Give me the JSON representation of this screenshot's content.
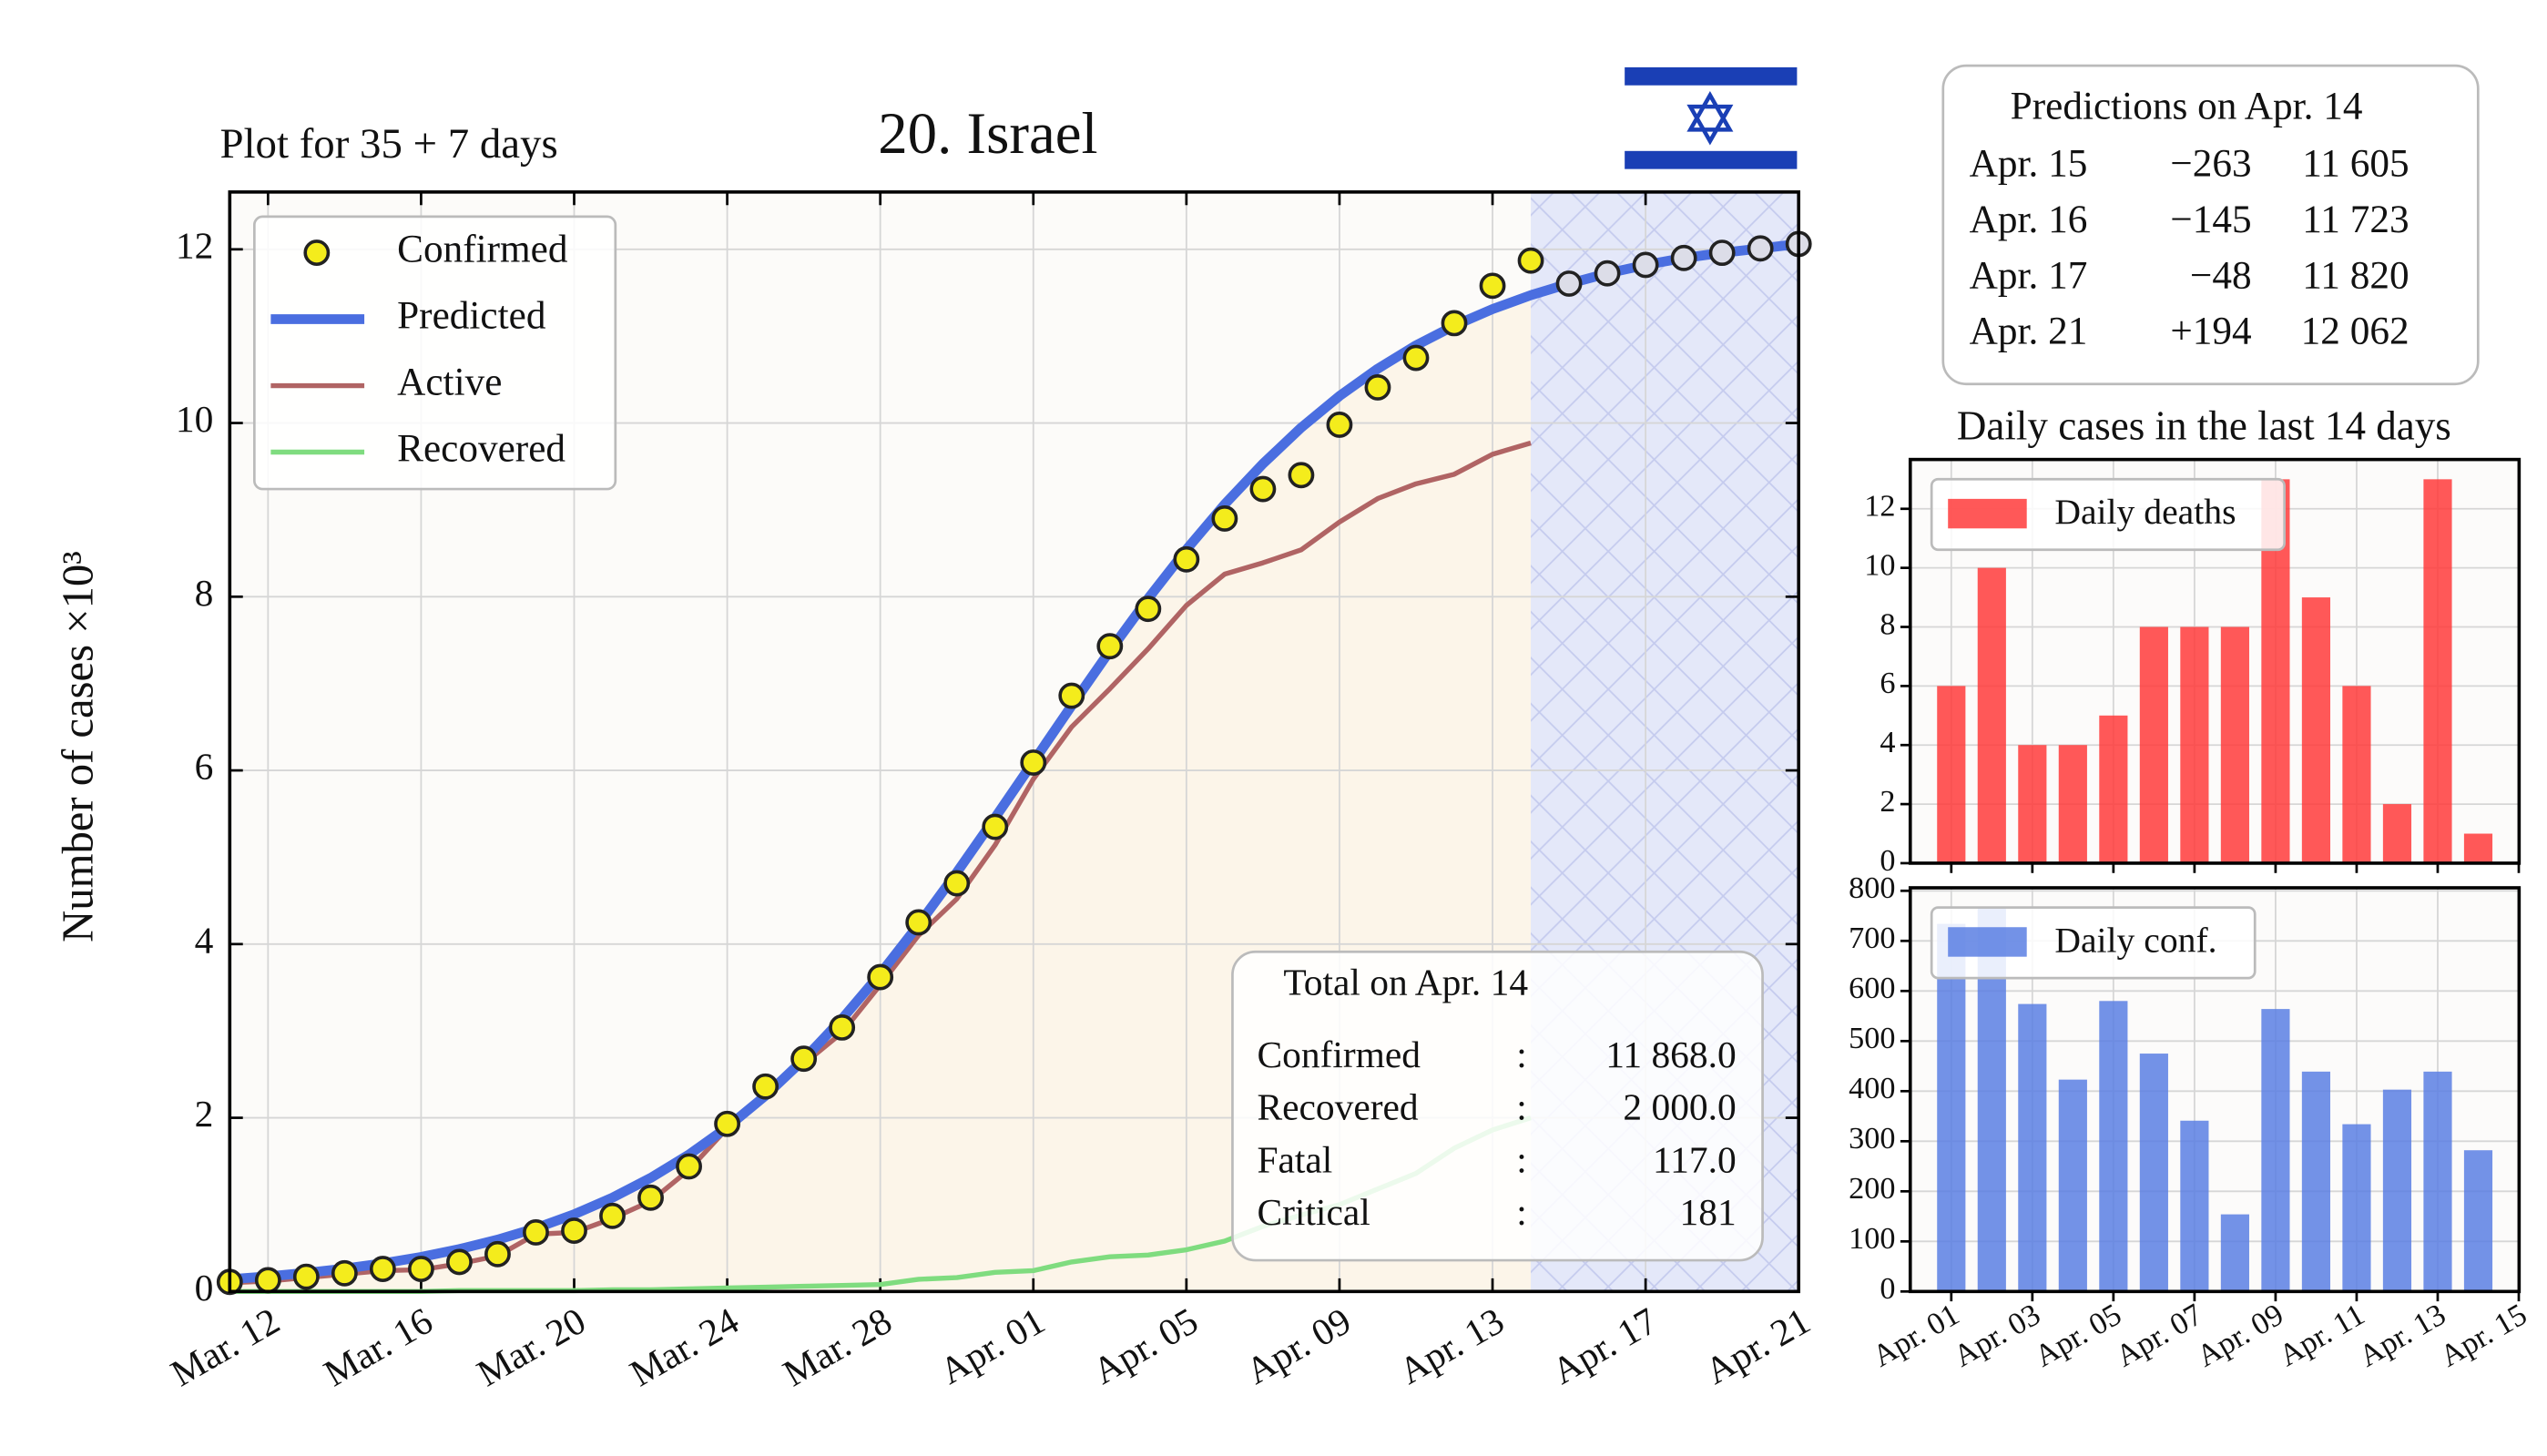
{
  "chart_data": [
    {
      "type": "line",
      "title": "20. Israel",
      "subtitle": "Plot for 35 + 7 days",
      "ylabel": "Number of cases ×10³",
      "categories": [
        null,
        "Mar. 12",
        null,
        null,
        null,
        "Mar. 16",
        null,
        null,
        null,
        "Mar. 20",
        null,
        null,
        null,
        "Mar. 24",
        null,
        null,
        null,
        "Mar. 28",
        null,
        null,
        null,
        "Apr. 01",
        null,
        null,
        null,
        "Apr. 05",
        null,
        null,
        null,
        "Apr. 09",
        null,
        null,
        null,
        "Apr. 13",
        null,
        null,
        null,
        "Apr. 17",
        null,
        null,
        null,
        "Apr. 21"
      ],
      "ylim": [
        0,
        12.66
      ],
      "yticks": [
        0,
        2,
        4,
        6,
        8,
        10,
        12
      ],
      "grid": true,
      "legend": "upper left",
      "series": [
        {
          "name": "Confirmed",
          "color": "#f4ec1c",
          "marker": "o",
          "values": [
            0.11,
            0.13,
            0.17,
            0.21,
            0.26,
            0.26,
            0.34,
            0.43,
            0.68,
            0.7,
            0.87,
            1.08,
            1.44,
            1.93,
            2.36,
            2.68,
            3.04,
            3.62,
            4.25,
            4.7,
            5.35,
            6.09,
            6.86,
            7.43,
            7.86,
            8.43,
            8.9,
            9.24,
            9.4,
            9.98,
            10.41,
            10.75,
            11.15,
            11.58,
            11.87,
            null,
            null,
            null,
            null,
            null,
            null,
            null
          ]
        },
        {
          "name": "Predicted",
          "color": "#4a6ee0",
          "linewidth": 6,
          "values": [
            0.141,
            0.174,
            0.214,
            0.263,
            0.324,
            0.397,
            0.488,
            0.597,
            0.729,
            0.889,
            1.08,
            1.308,
            1.576,
            1.891,
            2.255,
            2.671,
            3.139,
            3.658,
            4.223,
            4.826,
            5.456,
            6.1,
            6.744,
            7.376,
            7.979,
            8.543,
            9.064,
            9.531,
            9.947,
            10.311,
            10.625,
            10.894,
            11.121,
            11.312,
            11.472,
            11.605,
            11.723,
            11.82,
            11.9,
            11.96,
            12.01,
            12.062
          ]
        },
        {
          "name": "Active",
          "color": "#b06464",
          "linewidth": 3,
          "values": [
            0.1,
            0.12,
            0.16,
            0.2,
            0.24,
            0.25,
            0.32,
            0.41,
            0.66,
            0.68,
            0.84,
            1.04,
            1.4,
            1.88,
            2.3,
            2.62,
            2.98,
            3.53,
            4.1,
            4.52,
            5.14,
            5.9,
            6.5,
            6.94,
            7.4,
            7.9,
            8.26,
            8.39,
            8.54,
            8.86,
            9.13,
            9.3,
            9.41,
            9.64,
            9.77,
            null,
            null,
            null,
            null,
            null,
            null,
            null
          ]
        },
        {
          "name": "Recovered",
          "color": "#7fdc7f",
          "linewidth": 3,
          "values": [
            0,
            0,
            0,
            0,
            0,
            0,
            0.01,
            0.01,
            0.01,
            0.01,
            0.02,
            0.02,
            0.03,
            0.04,
            0.05,
            0.06,
            0.07,
            0.08,
            0.14,
            0.16,
            0.22,
            0.24,
            0.34,
            0.4,
            0.42,
            0.48,
            0.58,
            0.75,
            0.88,
            1.0,
            1.18,
            1.36,
            1.65,
            1.86,
            2.0,
            null,
            null,
            null,
            null,
            null,
            null,
            null
          ]
        }
      ]
    },
    {
      "type": "bar",
      "title": "Daily cases in the last 14 days",
      "categories": [
        "Apr. 01",
        null,
        "Apr. 03",
        null,
        "Apr. 05",
        null,
        "Apr. 07",
        null,
        "Apr. 09",
        null,
        "Apr. 11",
        null,
        "Apr. 13",
        null,
        "Apr. 15"
      ],
      "ylim": [
        0,
        13.67
      ],
      "yticks": [
        0,
        2,
        4,
        6,
        8,
        10,
        12
      ],
      "grid": true,
      "legend": "upper left",
      "series": [
        {
          "name": "Daily deaths",
          "color": "#ff3b3b",
          "values": [
            6,
            10,
            4,
            4,
            5,
            8,
            8,
            8,
            13,
            9,
            6,
            2,
            13,
            1,
            null
          ]
        }
      ]
    },
    {
      "type": "bar",
      "categories": [
        "Apr. 01",
        null,
        "Apr. 03",
        null,
        "Apr. 05",
        null,
        "Apr. 07",
        null,
        "Apr. 09",
        null,
        "Apr. 11",
        null,
        "Apr. 13",
        null,
        "Apr. 15"
      ],
      "ylim": [
        0,
        806
      ],
      "yticks": [
        0,
        100,
        200,
        300,
        400,
        500,
        600,
        700,
        800
      ],
      "grid": true,
      "legend": "upper left",
      "series": [
        {
          "name": "Daily conf.",
          "color": "#5b7fe3",
          "values": [
            734,
            767,
            574,
            423,
            580,
            475,
            341,
            154,
            564,
            439,
            334,
            403,
            439,
            282,
            null
          ]
        }
      ]
    }
  ],
  "totals": {
    "title": "Total on Apr. 14",
    "rows": [
      [
        "Confirmed",
        ":",
        "11 868.0"
      ],
      [
        "Recovered",
        ":",
        "2 000.0"
      ],
      [
        "Fatal",
        ":",
        "117.0"
      ],
      [
        "Critical",
        ":",
        "181"
      ]
    ]
  },
  "predictions": {
    "title": "Predictions on Apr. 14",
    "rows": [
      [
        "Apr. 15",
        "−263",
        "11 605"
      ],
      [
        "Apr. 16",
        "−145",
        "11 723"
      ],
      [
        "Apr. 17",
        "−48",
        "11 820"
      ],
      [
        "Apr. 21",
        "+194",
        "12 062"
      ]
    ]
  }
}
